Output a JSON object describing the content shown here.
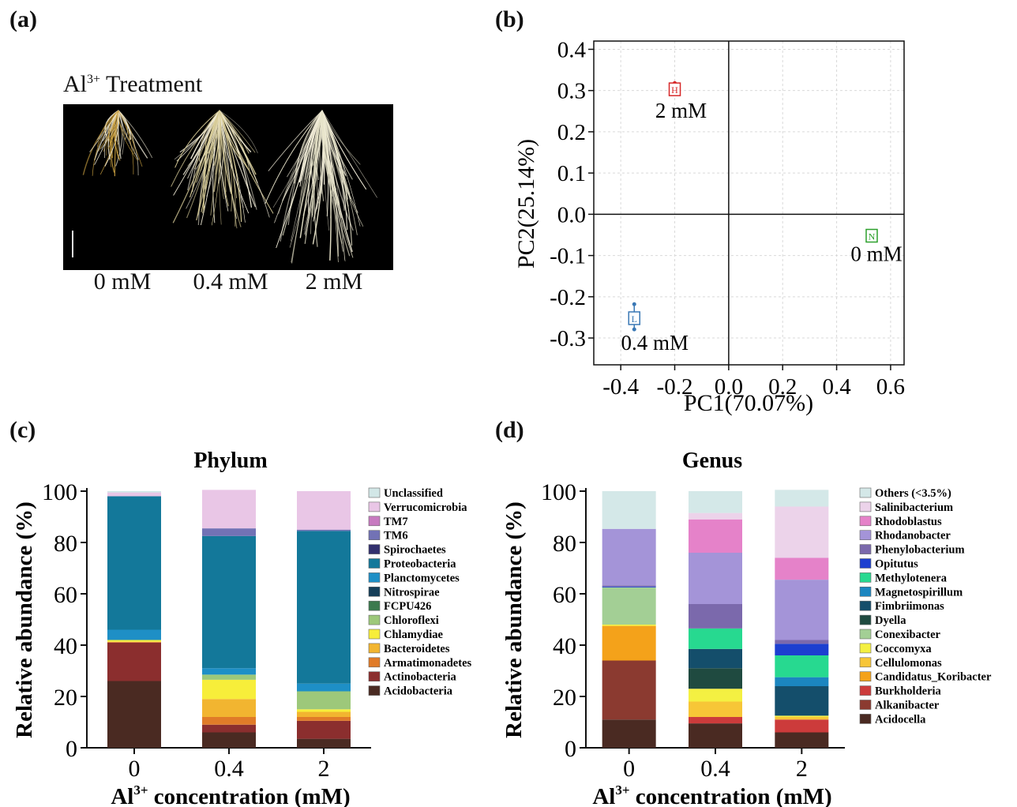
{
  "panels": {
    "a": {
      "label": "(a)",
      "title_main": "Al",
      "title_sup": "3+",
      "title_rest": " Treatment",
      "concentrations": [
        "0 mM",
        "0.4 mM",
        "2 mM"
      ]
    },
    "b": {
      "label": "(b)"
    },
    "c": {
      "label": "(c)"
    },
    "d": {
      "label": "(d)"
    }
  },
  "chart_data": [
    {
      "type": "scatter",
      "panel": "b",
      "xlabel": "PC1(70.07%)",
      "ylabel": "PC2(25.14%)",
      "xlim": [
        -0.5,
        0.65
      ],
      "ylim": [
        -0.365,
        0.42
      ],
      "xticks": [
        -0.4,
        -0.2,
        0.0,
        0.2,
        0.4,
        0.6
      ],
      "xtick_labels": [
        "-0.4",
        "-0.2",
        "0.0",
        "0.2",
        "0.4",
        "0.6"
      ],
      "yticks": [
        0.4,
        0.3,
        0.2,
        0.1,
        0.0,
        -0.1,
        -0.2,
        -0.3
      ],
      "ytick_labels": [
        "0.4",
        "0.3",
        "0.2",
        "0.1",
        "0.0",
        "-0.1",
        "-0.2",
        "-0.3"
      ],
      "grid": true,
      "points": [
        {
          "marker": "H",
          "label": "2 mM",
          "x": -0.2,
          "y": 0.303,
          "color": "#d62728",
          "spread": [
            0.292,
            0.318
          ]
        },
        {
          "marker": "L",
          "label": "0.4 mM",
          "x": -0.35,
          "y": -0.252,
          "color": "#3a78b5",
          "spread": [
            -0.279,
            -0.218
          ]
        },
        {
          "marker": "N",
          "label": "0 mM",
          "x": 0.53,
          "y": -0.052,
          "color": "#2ca02c",
          "spread": [
            -0.06,
            -0.045
          ]
        }
      ]
    },
    {
      "type": "bar",
      "stacked": true,
      "panel": "c",
      "title": "Phylum",
      "ylabel": "Relative abundance (%)",
      "xlabel_main": "Al",
      "xlabel_sup": "3+",
      "xlabel_rest": " concentration (mM)",
      "categories": [
        "0",
        "0.4",
        "2"
      ],
      "ylim": [
        0,
        100
      ],
      "yticks": [
        0,
        20,
        40,
        60,
        80,
        100
      ],
      "ytick_labels": [
        "0",
        "20",
        "40",
        "60",
        "80",
        "100"
      ],
      "legend_position": "right",
      "series": [
        {
          "name": "Acidobacteria",
          "color": "#4a2a22",
          "values": [
            26,
            6,
            3.5
          ]
        },
        {
          "name": "Actinobacteria",
          "color": "#8b2e2e",
          "values": [
            15,
            3,
            7
          ]
        },
        {
          "name": "Armatimonadetes",
          "color": "#e07b28",
          "values": [
            0.3,
            3,
            1.5
          ]
        },
        {
          "name": "Bacteroidetes",
          "color": "#f2b530",
          "values": [
            0,
            7,
            2
          ]
        },
        {
          "name": "Chlamydiae",
          "color": "#f7ee3a",
          "values": [
            0.7,
            7.5,
            1
          ]
        },
        {
          "name": "Chloroflexi",
          "color": "#9dc87a",
          "values": [
            0,
            2,
            7
          ]
        },
        {
          "name": "FCPU426",
          "color": "#3c7a4e",
          "values": [
            0,
            0,
            0
          ]
        },
        {
          "name": "Nitrospirae",
          "color": "#153e58",
          "values": [
            0,
            0,
            0
          ]
        },
        {
          "name": "Planctomycetes",
          "color": "#1e8fc6",
          "values": [
            4,
            2.5,
            3
          ]
        },
        {
          "name": "Proteobacteria",
          "color": "#13789a",
          "values": [
            52,
            51.5,
            59.5
          ]
        },
        {
          "name": "Spirochaetes",
          "color": "#32306e",
          "values": [
            0,
            0,
            0
          ]
        },
        {
          "name": "TM6",
          "color": "#7272b5",
          "values": [
            0,
            3,
            0.5
          ]
        },
        {
          "name": "TM7",
          "color": "#c77ac0",
          "values": [
            0,
            0,
            0
          ]
        },
        {
          "name": "Verrucomicrobia",
          "color": "#e9c6e6",
          "values": [
            1.5,
            15,
            15
          ]
        },
        {
          "name": "Unclassified",
          "color": "#d2e7e7",
          "values": [
            0.5,
            0,
            0
          ]
        }
      ]
    },
    {
      "type": "bar",
      "stacked": true,
      "panel": "d",
      "title": "Genus",
      "ylabel": "Relative abundance (%)",
      "xlabel_main": "Al",
      "xlabel_sup": "3+",
      "xlabel_rest": " concentration (mM)",
      "categories": [
        "0",
        "0.4",
        "2"
      ],
      "ylim": [
        0,
        100
      ],
      "yticks": [
        0,
        20,
        40,
        60,
        80,
        100
      ],
      "ytick_labels": [
        "0",
        "20",
        "40",
        "60",
        "80",
        "100"
      ],
      "legend_position": "right",
      "series": [
        {
          "name": "Acidocella",
          "color": "#4a2a22",
          "values": [
            11,
            9.5,
            6
          ]
        },
        {
          "name": "Alkanibacter",
          "color": "#8b3a30",
          "values": [
            23,
            0,
            0
          ]
        },
        {
          "name": "Burkholderia",
          "color": "#cc3b3b",
          "values": [
            0,
            2.5,
            5
          ]
        },
        {
          "name": "Candidatus_Koribacter",
          "color": "#f4a21a",
          "values": [
            13.5,
            0,
            0
          ]
        },
        {
          "name": "Cellulomonas",
          "color": "#f7c637",
          "values": [
            0,
            6,
            1
          ]
        },
        {
          "name": "Coccomyxa",
          "color": "#f4f042",
          "values": [
            0.5,
            5,
            0.5
          ]
        },
        {
          "name": "Conexibacter",
          "color": "#a3cf95",
          "values": [
            14.5,
            0,
            0
          ]
        },
        {
          "name": "Dyella",
          "color": "#1f4a40",
          "values": [
            0,
            8,
            0
          ]
        },
        {
          "name": "Fimbriimonas",
          "color": "#144e6b",
          "values": [
            0,
            7.5,
            11.5
          ]
        },
        {
          "name": "Magnetospirillum",
          "color": "#1b86c0",
          "values": [
            0,
            0,
            3.5
          ]
        },
        {
          "name": "Methylotenera",
          "color": "#27d990",
          "values": [
            0,
            8,
            8.5
          ]
        },
        {
          "name": "Opitutus",
          "color": "#1c3fd0",
          "values": [
            0.3,
            0,
            4.5
          ]
        },
        {
          "name": "Phenylobacterium",
          "color": "#7b69ac",
          "values": [
            0.5,
            9.5,
            1.5
          ]
        },
        {
          "name": "Rhodanobacter",
          "color": "#a494d8",
          "values": [
            22,
            20,
            23.5
          ]
        },
        {
          "name": "Rhodoblastus",
          "color": "#e582c9",
          "values": [
            0,
            13,
            8.5
          ]
        },
        {
          "name": "Salinibacterium",
          "color": "#ecd3ea",
          "values": [
            0,
            2.5,
            20
          ]
        },
        {
          "name": "Others (<3.5%)",
          "color": "#d4e8e8",
          "values": [
            14.7,
            8.5,
            6.5
          ]
        }
      ]
    }
  ]
}
